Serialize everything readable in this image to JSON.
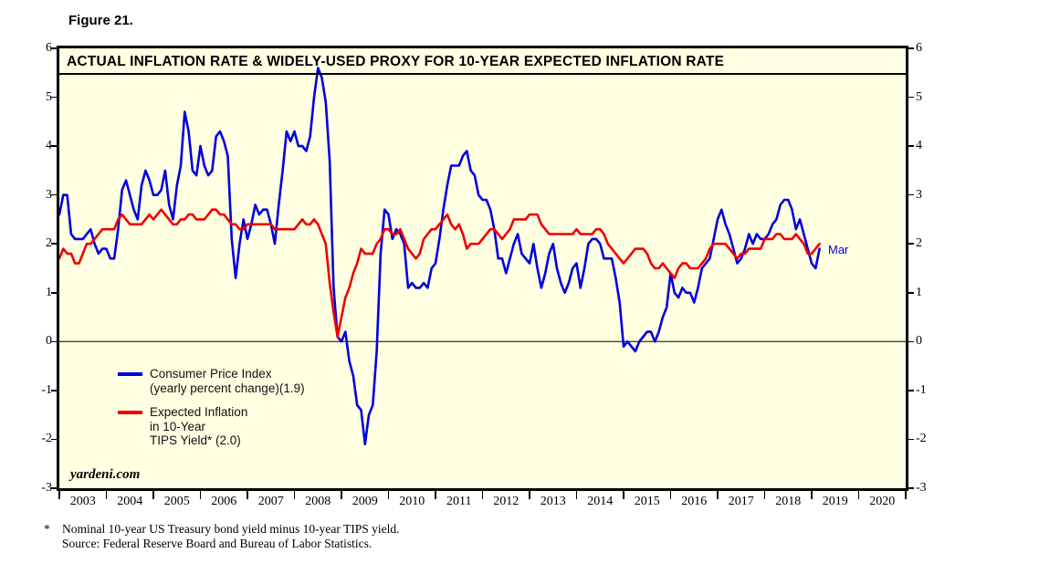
{
  "figure_label": "Figure 21.",
  "chart": {
    "title": "ACTUAL INFLATION RATE & WIDELY-USED PROXY FOR 10-YEAR EXPECTED INFLATION RATE",
    "watermark": "yardeni.com",
    "end_label": "Mar",
    "colors": {
      "cpi": "#0000E0",
      "tips": "#EE0000",
      "plot_bg": "#FFFFE1",
      "border": "#000000"
    }
  },
  "legend": [
    {
      "series": "cpi",
      "color": "#0000E0",
      "lines": [
        "Consumer Price Index",
        "(yearly percent change)(1.9)"
      ]
    },
    {
      "series": "tips",
      "color": "#EE0000",
      "lines": [
        "Expected Inflation",
        "in 10-Year",
        "TIPS Yield* (2.0)"
      ]
    }
  ],
  "footnote": {
    "marker": "*",
    "lines": [
      "Nominal 10-year US Treasury bond yield minus 10-year TIPS yield.",
      "Source: Federal Reserve Board and Bureau of Labor Statistics."
    ]
  },
  "chart_data": {
    "type": "line",
    "title": "ACTUAL INFLATION RATE & WIDELY-USED PROXY FOR 10-YEAR EXPECTED INFLATION RATE",
    "x_unit": "month",
    "x_start": 2003.0,
    "xlim": [
      2003,
      2021
    ],
    "ylim": [
      -3,
      6
    ],
    "yticks": [
      -3,
      -2,
      -1,
      0,
      1,
      2,
      3,
      4,
      5,
      6
    ],
    "x_axis_years": [
      2003,
      2004,
      2005,
      2006,
      2007,
      2008,
      2009,
      2010,
      2011,
      2012,
      2013,
      2014,
      2015,
      2016,
      2017,
      2018,
      2019,
      2020
    ],
    "zero_line": true,
    "legend_position": "inside-bottom-left",
    "series": [
      {
        "name": "Consumer Price Index (yearly percent change)",
        "last_value": 1.9,
        "color": "#0000E0",
        "values": [
          2.6,
          3.0,
          3.0,
          2.2,
          2.1,
          2.1,
          2.1,
          2.2,
          2.3,
          2.0,
          1.8,
          1.9,
          1.9,
          1.7,
          1.7,
          2.3,
          3.1,
          3.3,
          3.0,
          2.7,
          2.5,
          3.2,
          3.5,
          3.3,
          3.0,
          3.0,
          3.1,
          3.5,
          2.8,
          2.5,
          3.2,
          3.6,
          4.7,
          4.3,
          3.5,
          3.4,
          4.0,
          3.6,
          3.4,
          3.5,
          4.2,
          4.3,
          4.1,
          3.8,
          2.1,
          1.3,
          2.0,
          2.5,
          2.1,
          2.4,
          2.8,
          2.6,
          2.7,
          2.7,
          2.4,
          2.0,
          2.8,
          3.5,
          4.3,
          4.1,
          4.3,
          4.0,
          4.0,
          3.9,
          4.2,
          5.0,
          5.6,
          5.4,
          4.9,
          3.7,
          1.1,
          0.1,
          0.0,
          0.2,
          -0.4,
          -0.7,
          -1.3,
          -1.4,
          -2.1,
          -1.5,
          -1.3,
          -0.2,
          1.8,
          2.7,
          2.6,
          2.1,
          2.3,
          2.2,
          2.0,
          1.1,
          1.2,
          1.1,
          1.1,
          1.2,
          1.1,
          1.5,
          1.6,
          2.1,
          2.7,
          3.2,
          3.6,
          3.6,
          3.6,
          3.8,
          3.9,
          3.5,
          3.4,
          3.0,
          2.9,
          2.9,
          2.7,
          2.3,
          1.7,
          1.7,
          1.4,
          1.7,
          2.0,
          2.2,
          1.8,
          1.7,
          1.6,
          2.0,
          1.5,
          1.1,
          1.4,
          1.8,
          2.0,
          1.5,
          1.2,
          1.0,
          1.2,
          1.5,
          1.6,
          1.1,
          1.5,
          2.0,
          2.1,
          2.1,
          2.0,
          1.7,
          1.7,
          1.7,
          1.3,
          0.8,
          -0.1,
          0.0,
          -0.1,
          -0.2,
          0.0,
          0.1,
          0.2,
          0.2,
          0.0,
          0.2,
          0.5,
          0.7,
          1.4,
          1.0,
          0.9,
          1.1,
          1.0,
          1.0,
          0.8,
          1.1,
          1.5,
          1.6,
          1.7,
          2.1,
          2.5,
          2.7,
          2.4,
          2.2,
          1.9,
          1.6,
          1.7,
          1.9,
          2.2,
          2.0,
          2.2,
          2.1,
          2.1,
          2.2,
          2.4,
          2.5,
          2.8,
          2.9,
          2.9,
          2.7,
          2.3,
          2.5,
          2.2,
          1.9,
          1.6,
          1.5,
          1.9
        ]
      },
      {
        "name": "Expected Inflation in 10-Year TIPS Yield",
        "last_value": 2.0,
        "color": "#EE0000",
        "values": [
          1.7,
          1.9,
          1.8,
          1.8,
          1.6,
          1.6,
          1.8,
          2.0,
          2.0,
          2.1,
          2.2,
          2.3,
          2.3,
          2.3,
          2.3,
          2.5,
          2.6,
          2.5,
          2.4,
          2.4,
          2.4,
          2.4,
          2.5,
          2.6,
          2.5,
          2.6,
          2.7,
          2.6,
          2.5,
          2.4,
          2.4,
          2.5,
          2.5,
          2.6,
          2.6,
          2.5,
          2.5,
          2.5,
          2.6,
          2.7,
          2.7,
          2.6,
          2.6,
          2.5,
          2.4,
          2.4,
          2.3,
          2.3,
          2.4,
          2.4,
          2.4,
          2.4,
          2.4,
          2.4,
          2.4,
          2.3,
          2.3,
          2.3,
          2.3,
          2.3,
          2.3,
          2.4,
          2.5,
          2.4,
          2.4,
          2.5,
          2.4,
          2.2,
          2.0,
          1.2,
          0.6,
          0.1,
          0.5,
          0.9,
          1.1,
          1.4,
          1.6,
          1.9,
          1.8,
          1.8,
          1.8,
          2.0,
          2.1,
          2.3,
          2.3,
          2.2,
          2.2,
          2.3,
          2.1,
          1.9,
          1.8,
          1.7,
          1.8,
          2.1,
          2.2,
          2.3,
          2.3,
          2.4,
          2.5,
          2.6,
          2.4,
          2.3,
          2.4,
          2.2,
          1.9,
          2.0,
          2.0,
          2.0,
          2.1,
          2.2,
          2.3,
          2.3,
          2.2,
          2.1,
          2.2,
          2.3,
          2.5,
          2.5,
          2.5,
          2.5,
          2.6,
          2.6,
          2.6,
          2.4,
          2.3,
          2.2,
          2.2,
          2.2,
          2.2,
          2.2,
          2.2,
          2.2,
          2.3,
          2.2,
          2.2,
          2.2,
          2.2,
          2.3,
          2.3,
          2.2,
          2.0,
          1.9,
          1.8,
          1.7,
          1.6,
          1.7,
          1.8,
          1.9,
          1.9,
          1.9,
          1.8,
          1.6,
          1.5,
          1.5,
          1.6,
          1.5,
          1.4,
          1.3,
          1.5,
          1.6,
          1.6,
          1.5,
          1.5,
          1.5,
          1.6,
          1.7,
          1.9,
          2.0,
          2.0,
          2.0,
          2.0,
          1.9,
          1.8,
          1.7,
          1.8,
          1.8,
          1.9,
          1.9,
          1.9,
          1.9,
          2.1,
          2.1,
          2.1,
          2.2,
          2.2,
          2.1,
          2.1,
          2.1,
          2.2,
          2.1,
          2.0,
          1.8,
          1.8,
          1.9,
          2.0
        ]
      }
    ]
  }
}
